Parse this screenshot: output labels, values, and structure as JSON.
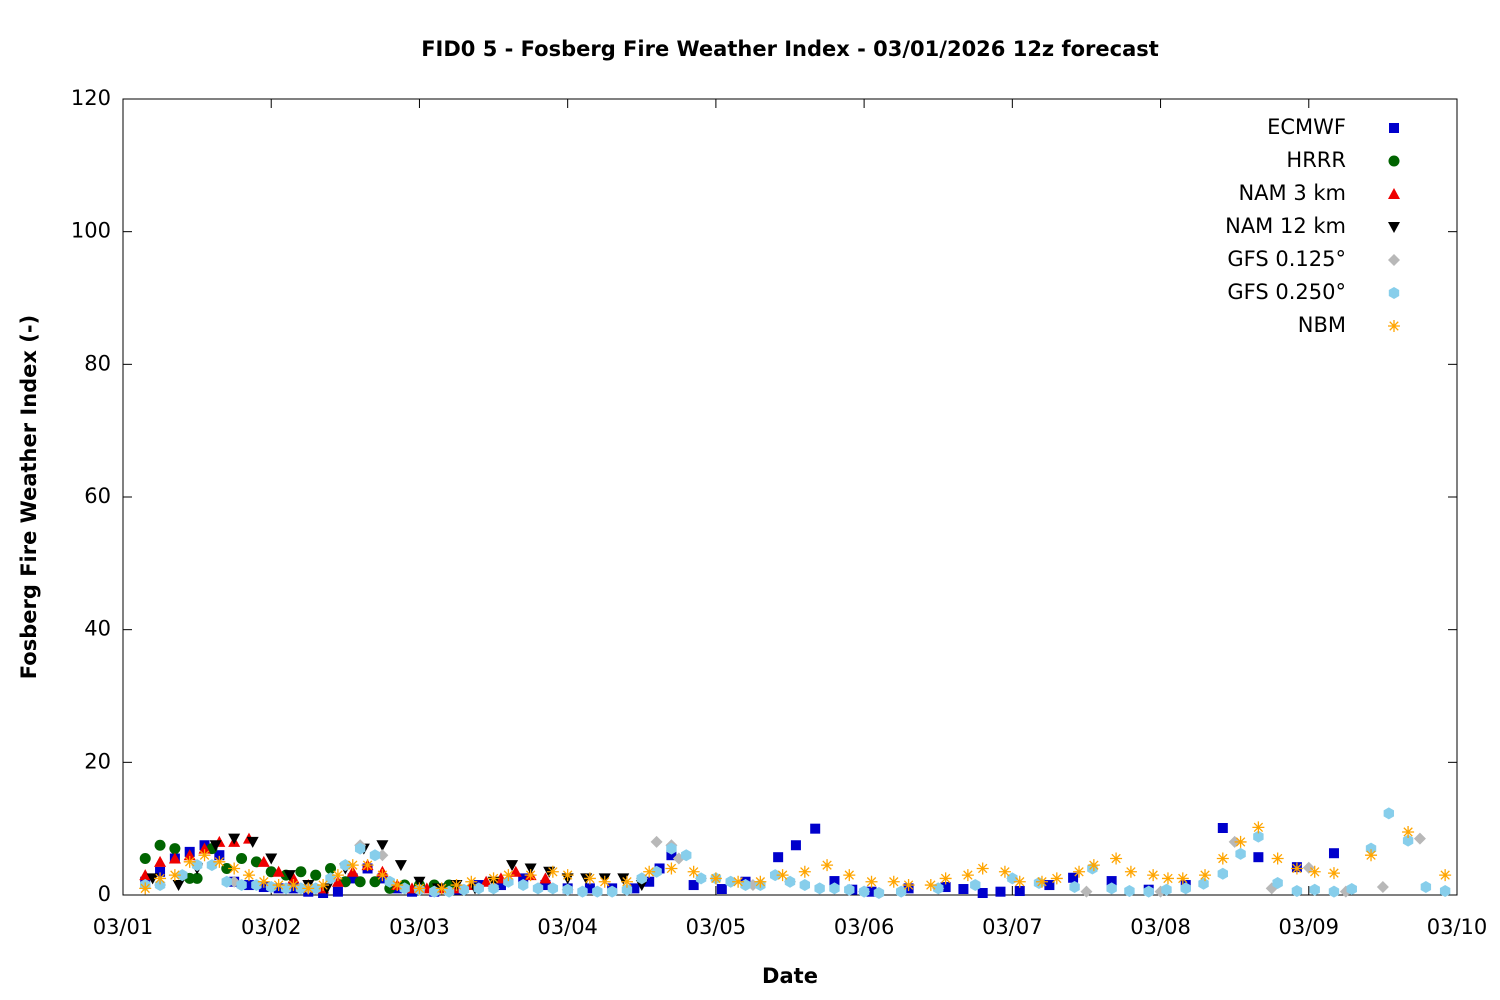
{
  "chart_data": {
    "type": "scatter",
    "title": "FID0 5 - Fosberg Fire Weather Index - 03/01/2026 12z forecast",
    "x_label": "Date",
    "y_label": "Fosberg Fire Weather Index (-)",
    "xlim": [
      0,
      9
    ],
    "xticks": [
      {
        "value": 0,
        "label": "03/01"
      },
      {
        "value": 1,
        "label": "03/02"
      },
      {
        "value": 2,
        "label": "03/03"
      },
      {
        "value": 3,
        "label": "03/04"
      },
      {
        "value": 4,
        "label": "03/05"
      },
      {
        "value": 5,
        "label": "03/06"
      },
      {
        "value": 6,
        "label": "03/07"
      },
      {
        "value": 7,
        "label": "03/08"
      },
      {
        "value": 8,
        "label": "03/09"
      },
      {
        "value": 9,
        "label": "03/10"
      }
    ],
    "ylim": [
      0,
      120
    ],
    "yticks": [
      0,
      20,
      40,
      60,
      80,
      100,
      120
    ],
    "legend_position": "top-right",
    "series": [
      {
        "name": "ECMWF",
        "color": "#0000cc",
        "marker": "square",
        "x": [
          0.15,
          0.25,
          0.35,
          0.45,
          0.55,
          0.65,
          0.75,
          0.85,
          0.95,
          1.05,
          1.15,
          1.25,
          1.35,
          1.45,
          1.55,
          1.65,
          1.75,
          1.85,
          1.95,
          2.1,
          2.25,
          2.4,
          2.55,
          2.7,
          2.85,
          3.0,
          3.15,
          3.3,
          3.45,
          3.55,
          3.62,
          3.7,
          3.85,
          4.04,
          4.2,
          4.42,
          4.54,
          4.67,
          4.8,
          4.92,
          5.05,
          5.3,
          5.55,
          5.67,
          5.8,
          5.92,
          6.05,
          6.25,
          6.41,
          6.67,
          6.92,
          7.17,
          7.42,
          7.66,
          7.92,
          8.17
        ],
        "values": [
          2,
          3.5,
          5.5,
          6.5,
          7.5,
          6,
          2,
          1.5,
          1.2,
          1,
          1,
          0.5,
          0.3,
          0.5,
          2.5,
          4,
          2.5,
          1,
          0.5,
          0.5,
          0.8,
          1.5,
          1.5,
          2.5,
          1.5,
          1,
          1,
          1,
          1,
          2,
          4,
          6,
          1.5,
          0.9,
          2,
          5.7,
          7.5,
          10,
          2.1,
          0.8,
          0.5,
          1,
          1.2,
          0.9,
          0.3,
          0.5,
          0.6,
          1.5,
          2.6,
          2.1,
          0.8,
          1.5,
          10.1,
          5.7,
          4.2,
          6.3
        ]
      },
      {
        "name": "HRRR",
        "color": "#006400",
        "marker": "circle",
        "x": [
          0.15,
          0.25,
          0.35,
          0.45,
          0.5,
          0.6,
          0.7,
          0.8,
          0.9,
          1.0,
          1.1,
          1.2,
          1.3,
          1.4,
          1.5,
          1.6,
          1.7,
          1.8,
          1.9,
          2.0,
          2.1,
          2.2
        ],
        "values": [
          5.5,
          7.5,
          7,
          2.5,
          2.5,
          7,
          4,
          5.5,
          5,
          3.5,
          3,
          3.5,
          3,
          4,
          2,
          2,
          2,
          1,
          1.5,
          1.5,
          1.5,
          1.5
        ]
      },
      {
        "name": "NAM 3 km",
        "color": "#ee0000",
        "marker": "triangle-up",
        "x": [
          0.15,
          0.25,
          0.35,
          0.45,
          0.55,
          0.65,
          0.75,
          0.85,
          0.95,
          1.05,
          1.15,
          1.25,
          1.35,
          1.45,
          1.55,
          1.65,
          1.75,
          1.85,
          1.95,
          2.05,
          2.15,
          2.25,
          2.35,
          2.45,
          2.55,
          2.65,
          2.75,
          2.85
        ],
        "values": [
          3,
          5,
          5.5,
          6,
          7,
          8,
          8,
          8.5,
          5,
          3.5,
          2.5,
          1.5,
          1,
          2,
          3.5,
          4.5,
          3.5,
          1.5,
          1,
          1,
          1,
          1,
          1.5,
          2,
          2.5,
          3.5,
          3,
          2.5
        ]
      },
      {
        "name": "NAM 12 km",
        "color": "#000000",
        "marker": "triangle-down",
        "x": [
          0.2,
          0.375,
          0.5,
          0.625,
          0.75,
          0.875,
          1.0,
          1.125,
          1.25,
          1.375,
          1.5,
          1.625,
          1.75,
          1.875,
          2.0,
          2.125,
          2.25,
          2.375,
          2.5,
          2.625,
          2.75,
          2.875,
          3.0,
          3.125,
          3.25,
          3.375,
          3.5
        ],
        "values": [
          2.5,
          1.5,
          4,
          7.5,
          8.5,
          8,
          5.5,
          3,
          1.5,
          1,
          4,
          7,
          7.5,
          4.5,
          2,
          1,
          1.5,
          1,
          2,
          4.5,
          4,
          3.5,
          2.5,
          2.5,
          2.5,
          2.5,
          1.5
        ]
      },
      {
        "name": "GFS 0.125°",
        "color": "#b8b8b8",
        "marker": "diamond",
        "x": [
          0.25,
          0.5,
          0.75,
          1.0,
          1.25,
          1.5,
          1.6,
          1.75,
          2.0,
          2.5,
          3.0,
          3.5,
          3.6,
          3.7,
          3.75,
          3.9,
          4.25,
          4.5,
          5.0,
          5.5,
          6.0,
          6.5,
          7.0,
          7.5,
          7.75,
          8.0,
          8.25,
          8.5,
          8.75
        ],
        "values": [
          1.5,
          4.5,
          2,
          1.2,
          1,
          4.5,
          7.5,
          6,
          0.8,
          1,
          0.8,
          2.5,
          8,
          7.5,
          5.5,
          2.5,
          1.5,
          2,
          0.5,
          1,
          2.5,
          0.5,
          0.5,
          8,
          1,
          4.1,
          0.5,
          1.2,
          8.5
        ]
      },
      {
        "name": "GFS 0.250°",
        "color": "#87ceeb",
        "marker": "hexagon",
        "x": [
          0.15,
          0.25,
          0.4,
          0.5,
          0.6,
          0.7,
          0.8,
          0.9,
          1.0,
          1.1,
          1.2,
          1.3,
          1.4,
          1.5,
          1.6,
          1.7,
          1.8,
          1.9,
          2.0,
          2.1,
          2.2,
          2.3,
          2.4,
          2.5,
          2.6,
          2.7,
          2.8,
          2.9,
          3.0,
          3.1,
          3.2,
          3.3,
          3.4,
          3.5,
          3.6,
          3.7,
          3.8,
          3.9,
          4.0,
          4.1,
          4.2,
          4.3,
          4.4,
          4.5,
          4.6,
          4.7,
          4.8,
          4.9,
          5.0,
          5.1,
          5.25,
          5.5,
          5.75,
          6.0,
          6.18,
          6.42,
          6.54,
          6.67,
          6.79,
          6.92,
          7.04,
          7.17,
          7.29,
          7.42,
          7.54,
          7.66,
          7.79,
          7.92,
          8.04,
          8.17,
          8.29,
          8.42,
          8.54,
          8.67,
          8.79,
          8.92
        ],
        "values": [
          1.5,
          1.5,
          3,
          4.5,
          4.5,
          2,
          1.5,
          1.5,
          1.2,
          1,
          1,
          1,
          2.5,
          4.5,
          7,
          6,
          2,
          1,
          0.8,
          0.5,
          0.5,
          0.8,
          1,
          1,
          2,
          1.5,
          1,
          1,
          0.8,
          0.5,
          0.5,
          0.5,
          0.8,
          2.5,
          3.5,
          7,
          6,
          2.5,
          2.5,
          2,
          1.5,
          1.5,
          3,
          2,
          1.5,
          1,
          1,
          0.8,
          0.5,
          0.3,
          0.5,
          1,
          1.5,
          2.5,
          1.8,
          1.2,
          4,
          1,
          0.6,
          0.5,
          0.8,
          1,
          1.7,
          3.2,
          6.2,
          8.8,
          1.8,
          0.6,
          0.8,
          0.5,
          0.9,
          7,
          12.3,
          8.2,
          1.2,
          0.6
        ]
      },
      {
        "name": "NBM",
        "color": "#ffa500",
        "marker": "asterisk",
        "x": [
          0.15,
          0.25,
          0.35,
          0.45,
          0.55,
          0.65,
          0.75,
          0.85,
          0.95,
          1.05,
          1.15,
          1.25,
          1.35,
          1.45,
          1.55,
          1.65,
          1.75,
          1.85,
          2.0,
          2.15,
          2.25,
          2.35,
          2.5,
          2.6,
          2.75,
          2.9,
          3.0,
          3.15,
          3.25,
          3.4,
          3.55,
          3.7,
          3.85,
          4.0,
          4.15,
          4.3,
          4.45,
          4.6,
          4.75,
          4.9,
          5.05,
          5.2,
          5.3,
          5.45,
          5.55,
          5.7,
          5.8,
          5.95,
          6.05,
          6.2,
          6.3,
          6.45,
          6.55,
          6.7,
          6.8,
          6.95,
          7.05,
          7.15,
          7.3,
          7.42,
          7.54,
          7.66,
          7.79,
          7.92,
          8.04,
          8.17,
          8.42,
          8.67,
          8.92
        ],
        "values": [
          1,
          2.5,
          3,
          5,
          6,
          5,
          4,
          3,
          2,
          1.5,
          1.5,
          1,
          1.5,
          3,
          4.5,
          4.5,
          3,
          1.5,
          1,
          1,
          1.5,
          2,
          2.5,
          3,
          3,
          3.5,
          3,
          2.5,
          2,
          2,
          3.5,
          4,
          3.5,
          2.5,
          2,
          2,
          3,
          3.5,
          4.5,
          3,
          2,
          2,
          1.5,
          1.5,
          2.5,
          3,
          4,
          3.5,
          2,
          2,
          2.5,
          3.5,
          4.5,
          5.5,
          3.5,
          3,
          2.5,
          2.5,
          3,
          5.5,
          8,
          10.2,
          5.5,
          4,
          3.5,
          3.3,
          6,
          9.5,
          3
        ]
      }
    ]
  }
}
